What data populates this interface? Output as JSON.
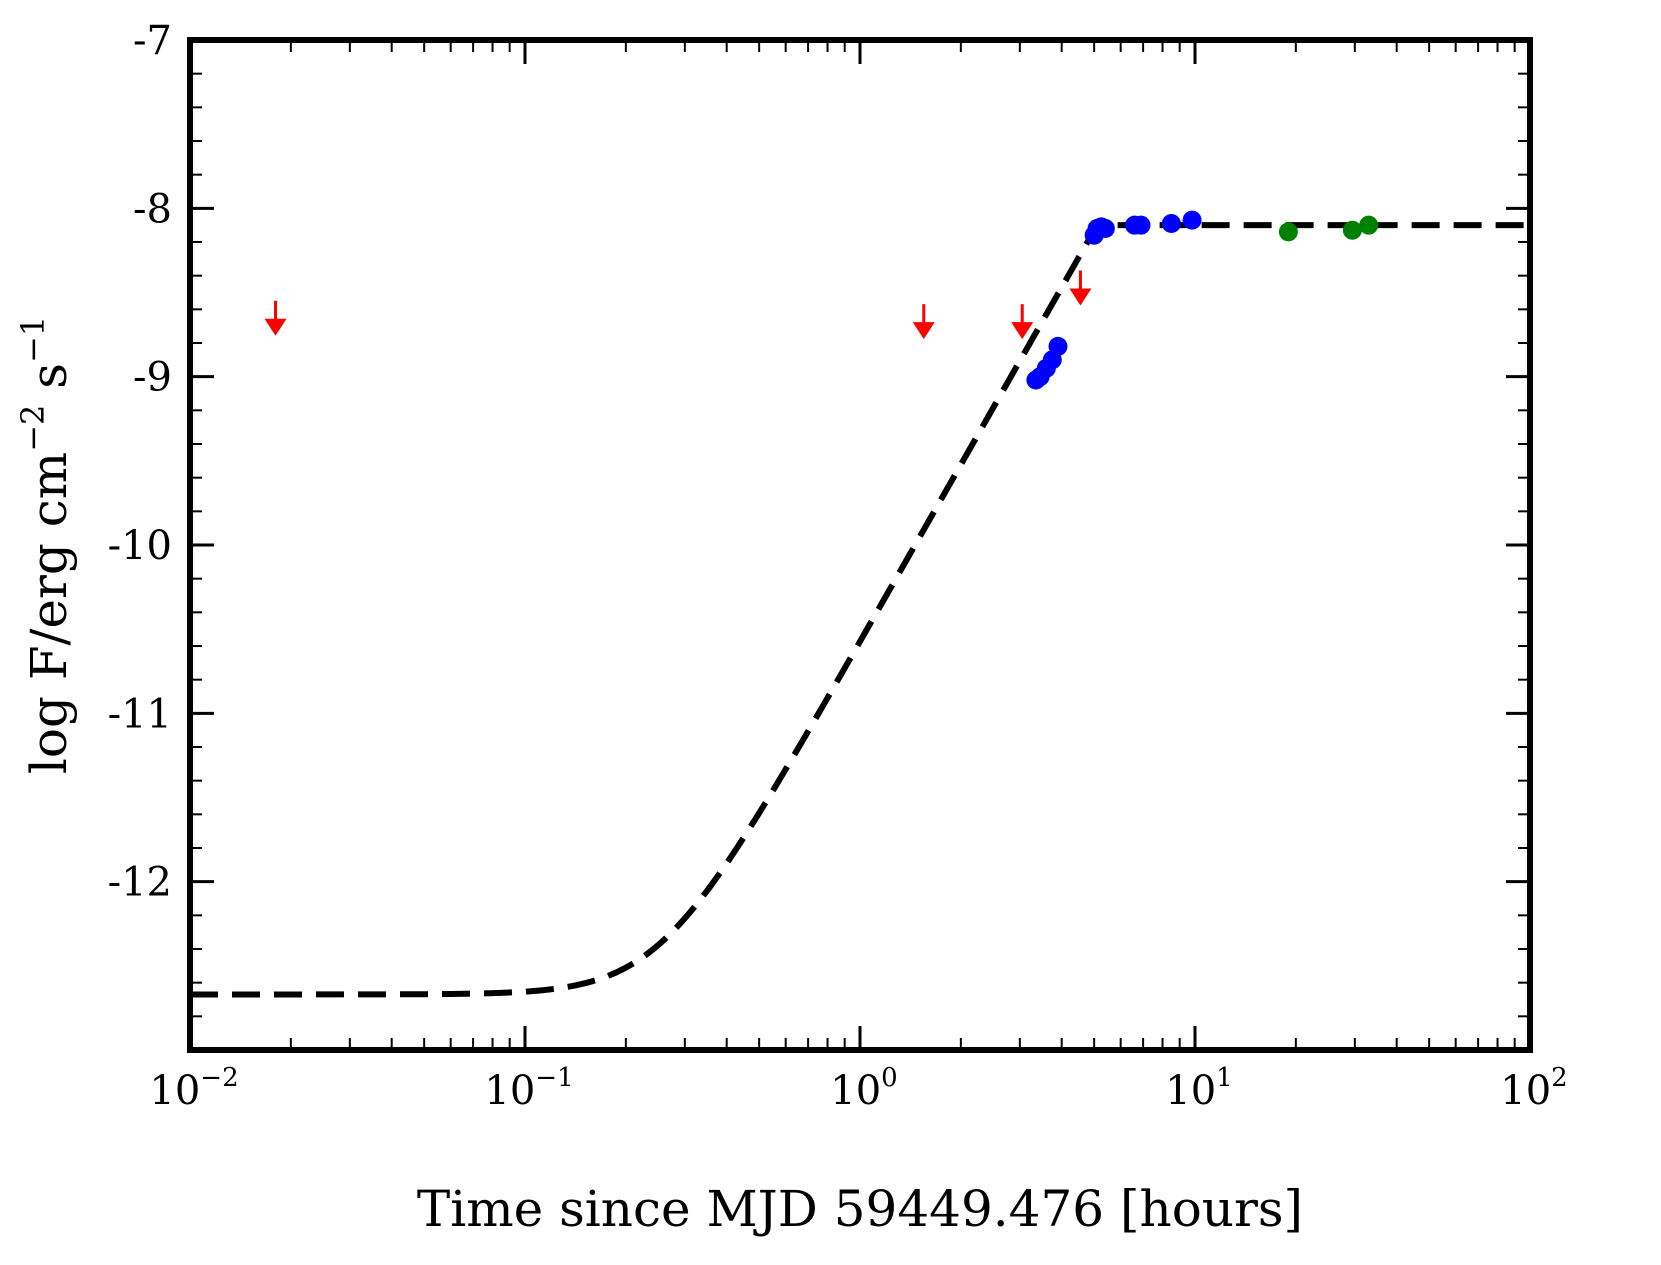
{
  "chart_data": {
    "type": "scatter",
    "xscale": "log",
    "xlim": [
      0.01,
      100
    ],
    "ylim": [
      -13.0,
      -7.0
    ],
    "xlabel": "Time since MJD 59449.476 [hours]",
    "ylabel": {
      "main": "log F/erg cm",
      "exp1": "−2",
      "mid": " s",
      "exp2": "−1"
    },
    "x_ticks": [
      {
        "value": 0.01,
        "base": "10",
        "exp": "−2"
      },
      {
        "value": 0.1,
        "base": "10",
        "exp": "−1"
      },
      {
        "value": 1,
        "base": "10",
        "exp": "0"
      },
      {
        "value": 10,
        "base": "10",
        "exp": "1"
      },
      {
        "value": 100,
        "base": "10",
        "exp": "2"
      }
    ],
    "y_ticks": [
      {
        "value": -7,
        "label": "-7"
      },
      {
        "value": -8,
        "label": "-8"
      },
      {
        "value": -9,
        "label": "-9"
      },
      {
        "value": -10,
        "label": "-10"
      },
      {
        "value": -11,
        "label": "-11"
      },
      {
        "value": -12,
        "label": "-12"
      }
    ],
    "model_curve": {
      "name": "model",
      "color": "#000000",
      "style": "dashed",
      "low_level": -12.67,
      "plateau": -8.1,
      "rise_time_hours": 5.1,
      "rise_index": 3.5
    },
    "series": [
      {
        "name": "upper-limits",
        "marker": "down-arrow",
        "color": "#ff0000",
        "points": [
          {
            "x": 0.018,
            "y": -8.68
          },
          {
            "x": 1.55,
            "y": -8.7
          },
          {
            "x": 3.05,
            "y": -8.7
          },
          {
            "x": 4.55,
            "y": -8.5
          }
        ]
      },
      {
        "name": "blue-detections",
        "marker": "circle",
        "color": "#0000ff",
        "points": [
          {
            "x": 3.35,
            "y": -9.02
          },
          {
            "x": 3.45,
            "y": -9.0
          },
          {
            "x": 3.6,
            "y": -8.95
          },
          {
            "x": 3.75,
            "y": -8.9
          },
          {
            "x": 3.9,
            "y": -8.82
          },
          {
            "x": 5.0,
            "y": -8.16
          },
          {
            "x": 5.1,
            "y": -8.12
          },
          {
            "x": 5.25,
            "y": -8.11
          },
          {
            "x": 5.4,
            "y": -8.12
          },
          {
            "x": 6.6,
            "y": -8.1
          },
          {
            "x": 6.9,
            "y": -8.1
          },
          {
            "x": 8.5,
            "y": -8.09
          },
          {
            "x": 9.8,
            "y": -8.07
          }
        ]
      },
      {
        "name": "green-detections",
        "marker": "circle",
        "color": "#008000",
        "points": [
          {
            "x": 19.0,
            "y": -8.14
          },
          {
            "x": 29.5,
            "y": -8.13
          },
          {
            "x": 33.0,
            "y": -8.1
          }
        ]
      }
    ]
  }
}
